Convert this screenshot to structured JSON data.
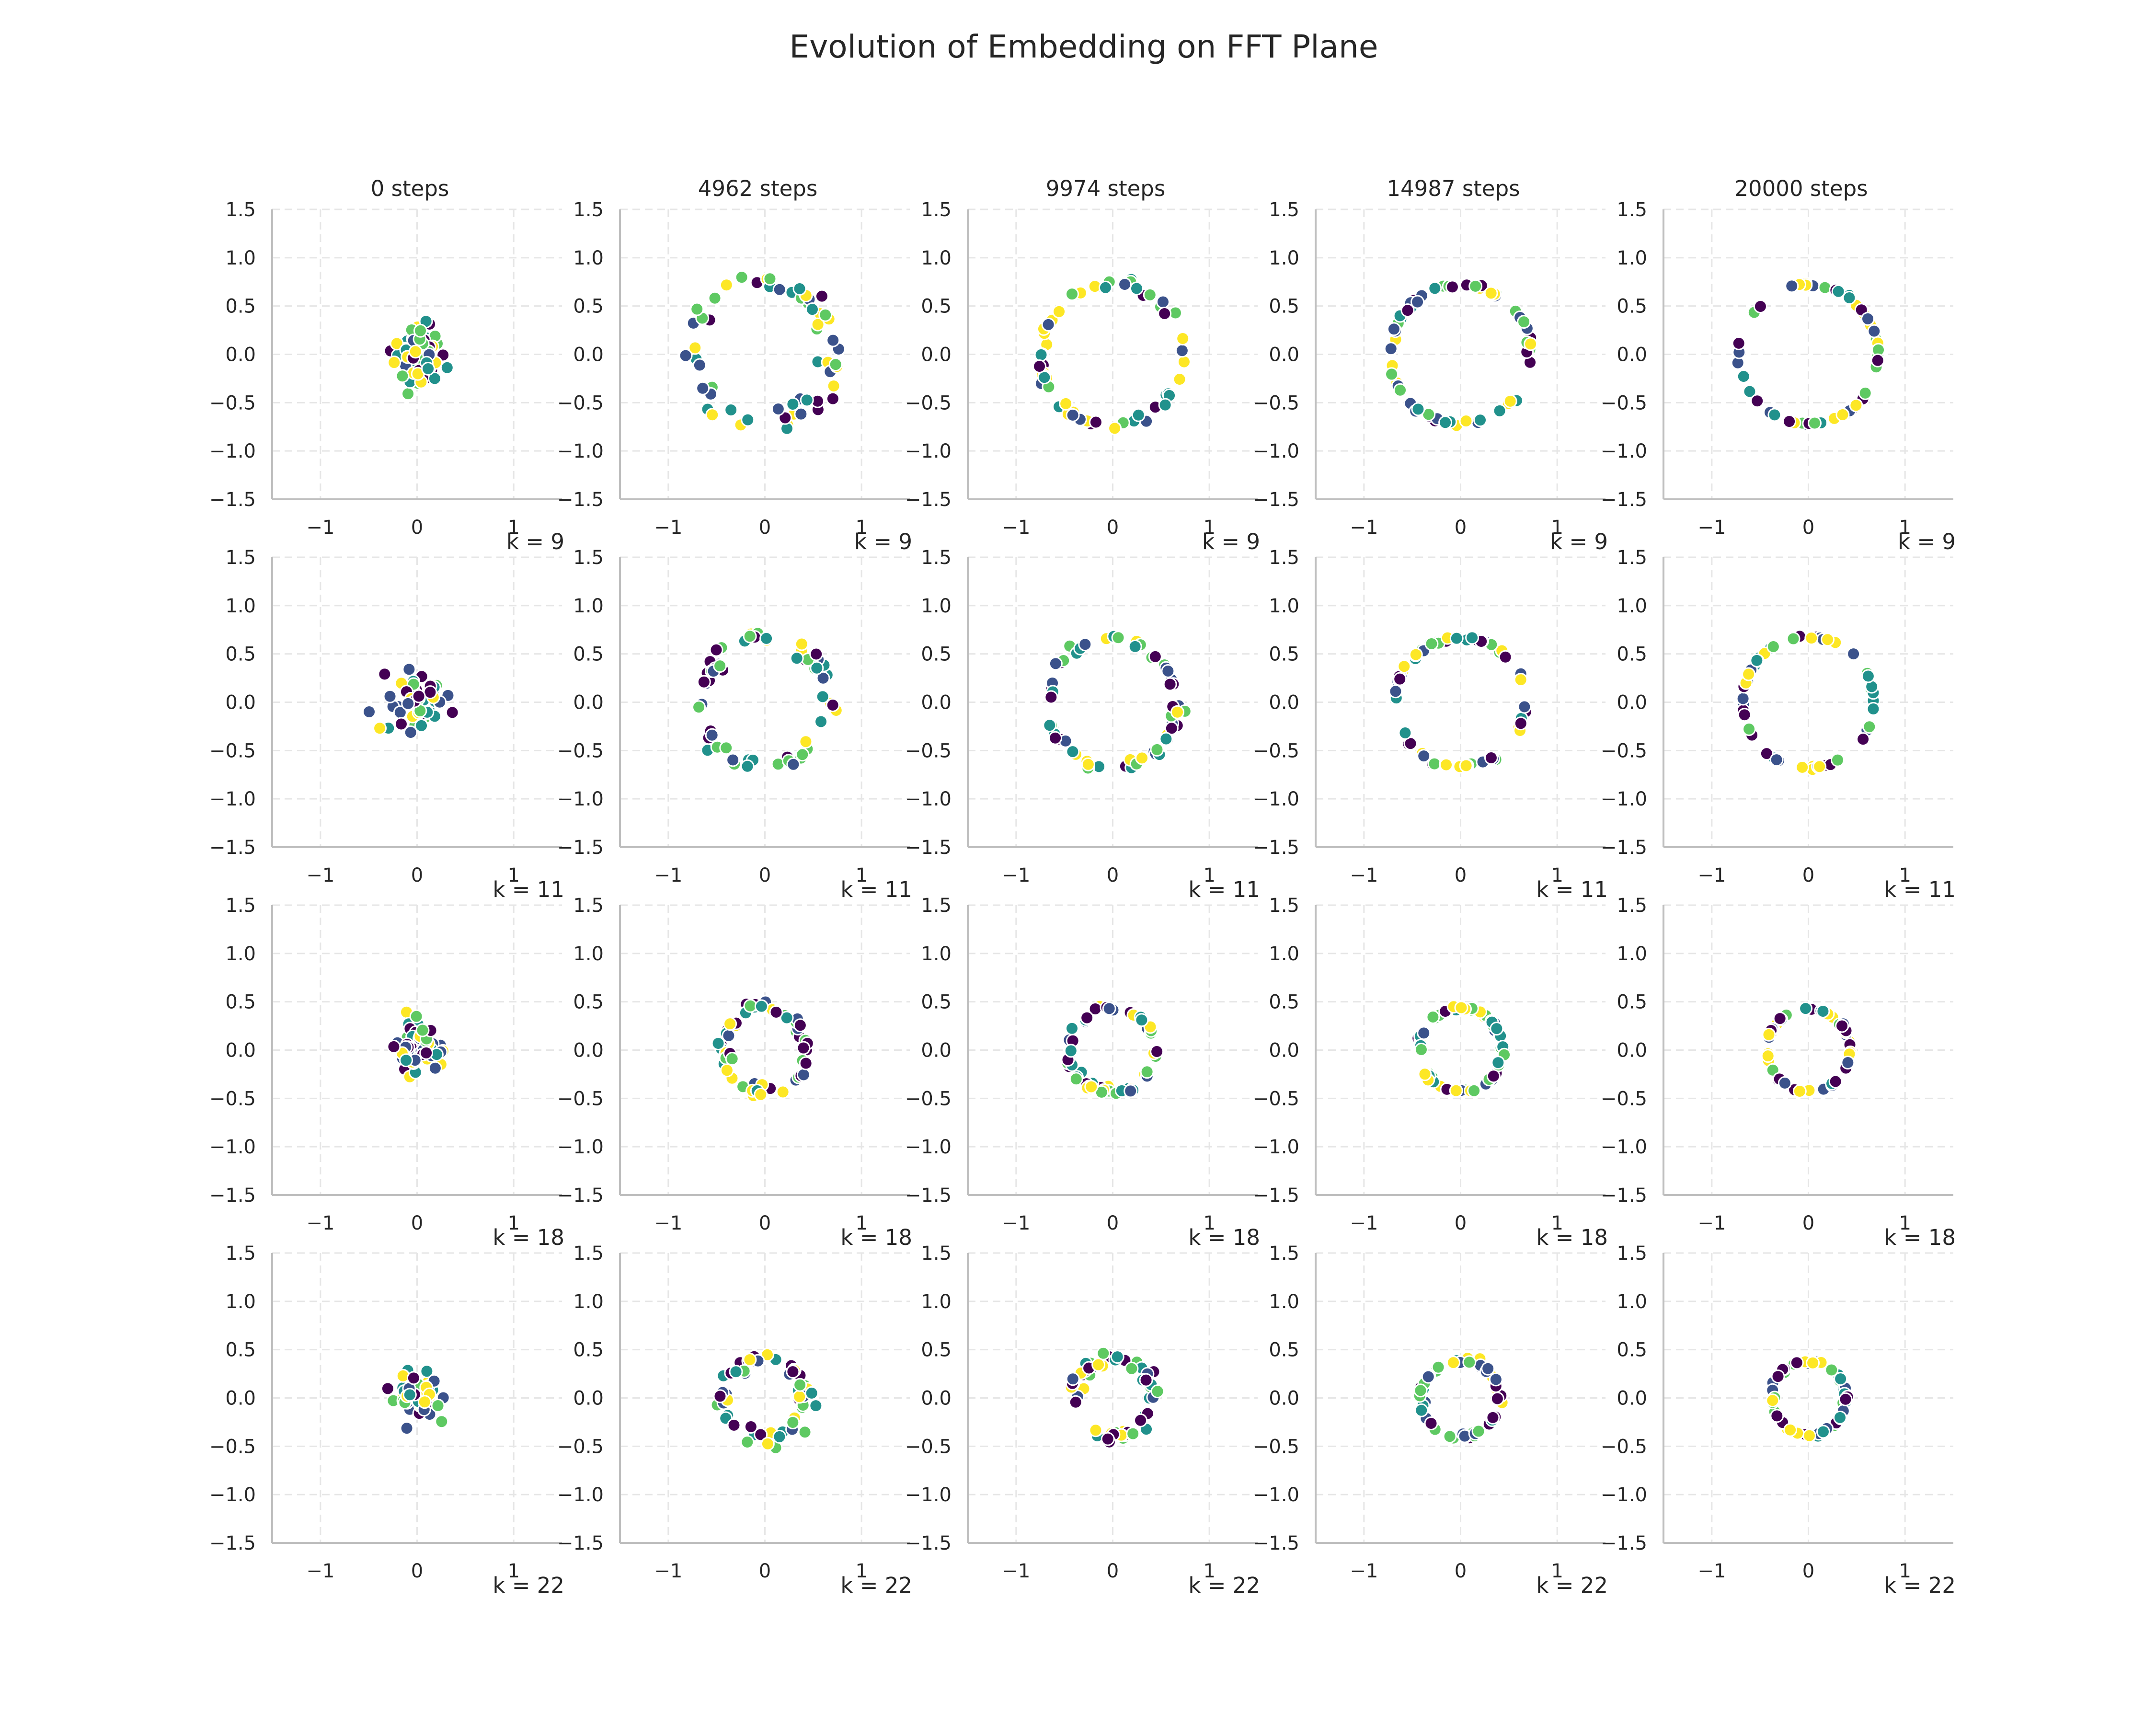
{
  "chart_data": {
    "type": "scatter",
    "title": "Evolution of Embedding on FFT Plane",
    "steps": [
      "0 steps",
      "4962 steps",
      "9974 steps",
      "14987 steps",
      "20000 steps"
    ],
    "k_labels": [
      "k = 9",
      "k = 11",
      "k = 18",
      "k = 22"
    ],
    "xlim": [
      -1.5,
      1.5
    ],
    "ylim": [
      -1.5,
      1.5
    ],
    "xticks": [
      -1,
      0,
      1
    ],
    "xtick_labels": [
      "−1",
      "0",
      "1"
    ],
    "yticks": [
      1.5,
      1.0,
      0.5,
      0.0,
      -0.5,
      -1.0,
      -1.5
    ],
    "ytick_labels": [
      "1.5",
      "1.0",
      "0.5",
      "0.0",
      "−0.5",
      "−1.0",
      "−1.5"
    ],
    "grid": true,
    "colormap": [
      "#440154",
      "#3b528b",
      "#21918c",
      "#5ec962",
      "#fde725"
    ],
    "points_per_panel": 60,
    "radius": [
      [
        0.25,
        0.72,
        0.73,
        0.72,
        0.72
      ],
      [
        0.25,
        0.66,
        0.67,
        0.67,
        0.68
      ],
      [
        0.22,
        0.43,
        0.44,
        0.43,
        0.43
      ],
      [
        0.2,
        0.43,
        0.41,
        0.4,
        0.38
      ]
    ],
    "spread": [
      [
        1.0,
        0.08,
        0.04,
        0.02,
        0.01
      ],
      [
        1.0,
        0.07,
        0.04,
        0.02,
        0.01
      ],
      [
        1.0,
        0.08,
        0.05,
        0.03,
        0.015
      ],
      [
        1.0,
        0.12,
        0.08,
        0.05,
        0.03
      ]
    ]
  }
}
